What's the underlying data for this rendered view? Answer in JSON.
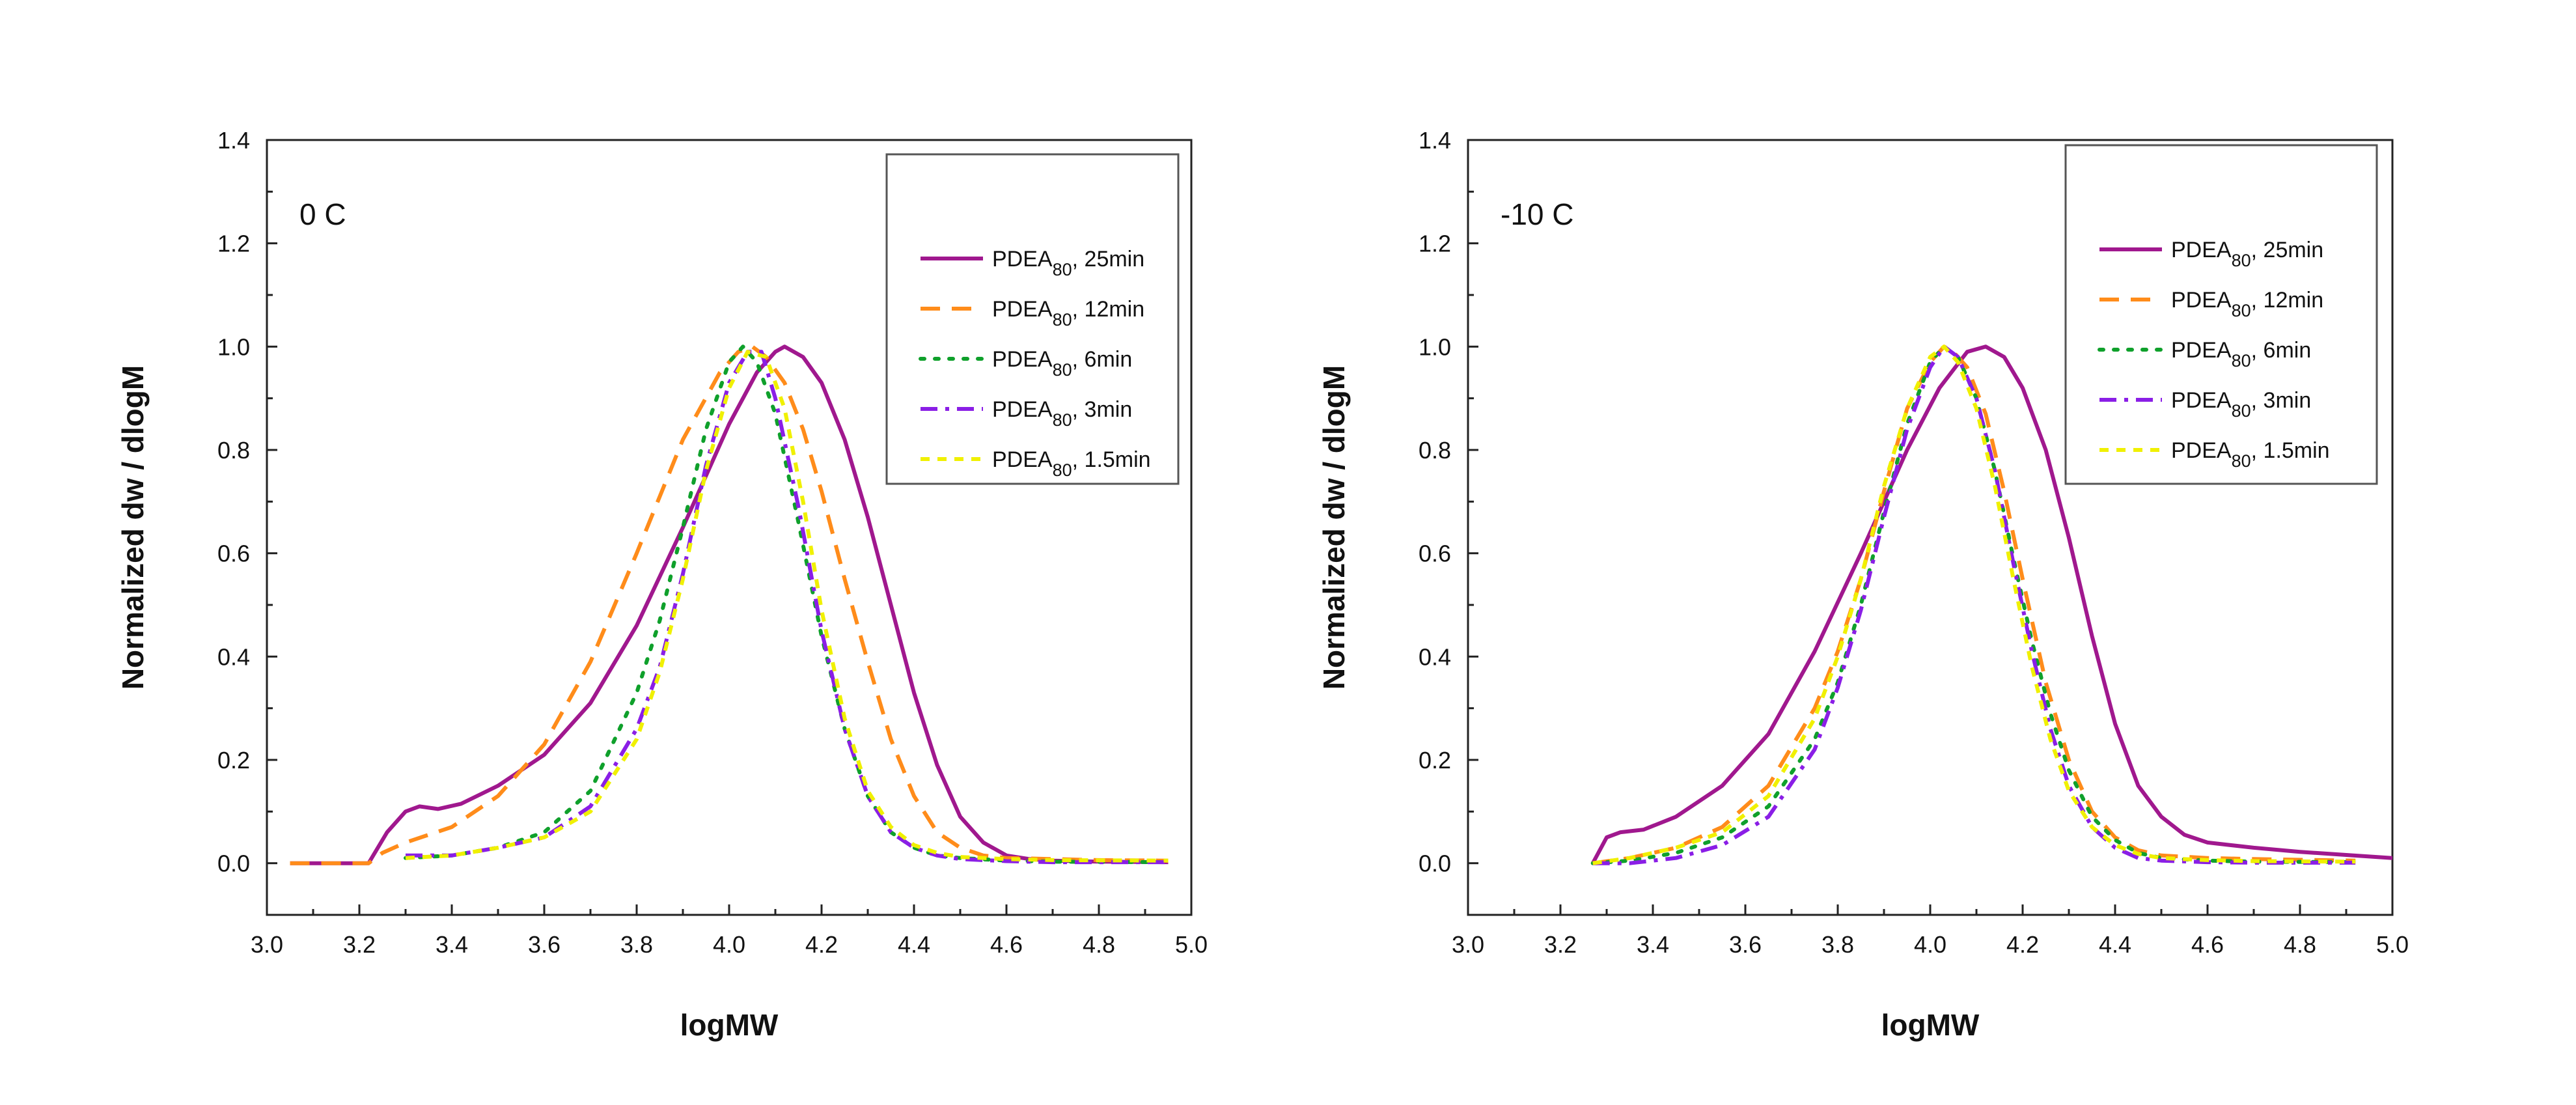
{
  "colors": {
    "PDEA80, 25min": "#a0188e",
    "PDEA80, 12min": "#ff8c1a",
    "PDEA80, 6min": "#0fa02b",
    "PDEA80, 3min": "#8a1ee6",
    "PDEA80, 1.5min": "#f0f000"
  },
  "chart_data": [
    {
      "type": "line",
      "title": "",
      "panel_label": "0 C",
      "xlabel": "logMW",
      "ylabel": "Normalized dw / dlogM",
      "xlim": [
        3.0,
        5.0
      ],
      "ylim": [
        -0.1,
        1.4
      ],
      "x_ticks": [
        "3.0",
        "3.2",
        "3.4",
        "3.6",
        "3.8",
        "4.0",
        "4.2",
        "4.4",
        "4.6",
        "4.8",
        "5.0"
      ],
      "y_ticks": [
        "0.0",
        "0.2",
        "0.4",
        "0.6",
        "0.8",
        "1.0",
        "1.2",
        "1.4"
      ],
      "grid": false,
      "legend_position": "top-right",
      "series": [
        {
          "name": "PDEA80, 25min",
          "legend_main": "PDEA",
          "legend_sub": "80",
          "legend_tail": ", 25min",
          "style": "solid",
          "x": [
            3.05,
            3.22,
            3.26,
            3.3,
            3.33,
            3.37,
            3.42,
            3.5,
            3.6,
            3.7,
            3.8,
            3.9,
            4.0,
            4.06,
            4.1,
            4.12,
            4.16,
            4.2,
            4.25,
            4.3,
            4.35,
            4.4,
            4.45,
            4.5,
            4.55,
            4.6,
            4.65,
            4.7,
            4.8,
            4.95
          ],
          "y": [
            0.0,
            0.0,
            0.06,
            0.1,
            0.11,
            0.105,
            0.115,
            0.15,
            0.21,
            0.31,
            0.46,
            0.65,
            0.85,
            0.95,
            0.99,
            1.0,
            0.98,
            0.93,
            0.82,
            0.67,
            0.5,
            0.33,
            0.19,
            0.09,
            0.04,
            0.015,
            0.008,
            0.005,
            0.003,
            0.002
          ]
        },
        {
          "name": "PDEA80, 12min",
          "legend_main": "PDEA",
          "legend_sub": "80",
          "legend_tail": ", 12min",
          "style": "dashed",
          "x": [
            3.05,
            3.22,
            3.25,
            3.3,
            3.4,
            3.5,
            3.6,
            3.7,
            3.8,
            3.9,
            3.98,
            4.02,
            4.05,
            4.08,
            4.12,
            4.16,
            4.2,
            4.25,
            4.3,
            4.35,
            4.4,
            4.45,
            4.5,
            4.55,
            4.6,
            4.7,
            4.8,
            4.95
          ],
          "y": [
            0.0,
            0.0,
            0.02,
            0.04,
            0.07,
            0.13,
            0.23,
            0.39,
            0.6,
            0.82,
            0.95,
            0.99,
            1.0,
            0.98,
            0.93,
            0.84,
            0.72,
            0.55,
            0.39,
            0.24,
            0.13,
            0.06,
            0.03,
            0.015,
            0.01,
            0.008,
            0.006,
            0.005
          ]
        },
        {
          "name": "PDEA80, 6min",
          "legend_main": "PDEA",
          "legend_sub": "80",
          "legend_tail": ", 6min",
          "style": "dotted",
          "x": [
            3.3,
            3.4,
            3.5,
            3.6,
            3.7,
            3.8,
            3.85,
            3.9,
            3.95,
            4.0,
            4.03,
            4.06,
            4.1,
            4.15,
            4.2,
            4.25,
            4.3,
            4.35,
            4.4,
            4.45,
            4.5,
            4.6,
            4.7,
            4.95
          ],
          "y": [
            0.01,
            0.015,
            0.03,
            0.06,
            0.14,
            0.33,
            0.47,
            0.65,
            0.84,
            0.97,
            1.0,
            0.97,
            0.87,
            0.66,
            0.44,
            0.26,
            0.13,
            0.06,
            0.03,
            0.015,
            0.01,
            0.005,
            0.003,
            0.002
          ]
        },
        {
          "name": "PDEA80, 3min",
          "legend_main": "PDEA",
          "legend_sub": "80",
          "legend_tail": ", 3min",
          "style": "dashdot",
          "x": [
            3.3,
            3.4,
            3.5,
            3.6,
            3.7,
            3.8,
            3.85,
            3.9,
            3.95,
            4.0,
            4.04,
            4.07,
            4.1,
            4.15,
            4.2,
            4.25,
            4.3,
            4.35,
            4.4,
            4.45,
            4.5,
            4.6,
            4.7,
            4.95
          ],
          "y": [
            0.015,
            0.015,
            0.03,
            0.05,
            0.11,
            0.26,
            0.38,
            0.56,
            0.77,
            0.93,
            0.99,
            0.99,
            0.9,
            0.69,
            0.45,
            0.26,
            0.13,
            0.06,
            0.03,
            0.015,
            0.008,
            0.004,
            0.002,
            0.002
          ]
        },
        {
          "name": "PDEA80, 1.5min",
          "legend_main": "PDEA",
          "legend_sub": "80",
          "legend_tail": ", 1.5min",
          "style": "shortdash",
          "x": [
            3.3,
            3.4,
            3.5,
            3.6,
            3.7,
            3.8,
            3.85,
            3.9,
            3.95,
            4.0,
            4.04,
            4.08,
            4.12,
            4.16,
            4.2,
            4.25,
            4.3,
            4.35,
            4.4,
            4.45,
            4.5,
            4.6,
            4.7,
            4.95
          ],
          "y": [
            0.01,
            0.015,
            0.03,
            0.05,
            0.1,
            0.24,
            0.37,
            0.55,
            0.76,
            0.92,
            0.99,
            0.98,
            0.88,
            0.7,
            0.49,
            0.28,
            0.14,
            0.07,
            0.035,
            0.02,
            0.012,
            0.008,
            0.006,
            0.005
          ]
        }
      ]
    },
    {
      "type": "line",
      "title": "",
      "panel_label": "-10 C",
      "xlabel": "logMW",
      "ylabel": "Normalized dw / dlogM",
      "xlim": [
        3.0,
        5.0
      ],
      "ylim": [
        -0.1,
        1.4
      ],
      "x_ticks": [
        "3.0",
        "3.2",
        "3.4",
        "3.6",
        "3.8",
        "4.0",
        "4.2",
        "4.4",
        "4.6",
        "4.8",
        "5.0"
      ],
      "y_ticks": [
        "0.0",
        "0.2",
        "0.4",
        "0.6",
        "0.8",
        "1.0",
        "1.2",
        "1.4"
      ],
      "grid": false,
      "legend_position": "top-right",
      "series": [
        {
          "name": "PDEA80, 25min",
          "legend_main": "PDEA",
          "legend_sub": "80",
          "legend_tail": ", 25min",
          "style": "solid",
          "x": [
            3.27,
            3.3,
            3.33,
            3.38,
            3.45,
            3.55,
            3.65,
            3.75,
            3.85,
            3.95,
            4.02,
            4.08,
            4.12,
            4.16,
            4.2,
            4.25,
            4.3,
            4.35,
            4.4,
            4.45,
            4.5,
            4.55,
            4.6,
            4.7,
            4.8,
            4.9,
            5.0
          ],
          "y": [
            0.0,
            0.05,
            0.06,
            0.065,
            0.09,
            0.15,
            0.25,
            0.41,
            0.6,
            0.8,
            0.92,
            0.99,
            1.0,
            0.98,
            0.92,
            0.8,
            0.63,
            0.44,
            0.27,
            0.15,
            0.09,
            0.055,
            0.04,
            0.03,
            0.022,
            0.016,
            0.01
          ]
        },
        {
          "name": "PDEA80, 12min",
          "legend_main": "PDEA",
          "legend_sub": "80",
          "legend_tail": ", 12min",
          "style": "dashed",
          "x": [
            3.27,
            3.35,
            3.45,
            3.55,
            3.65,
            3.75,
            3.8,
            3.85,
            3.9,
            3.95,
            4.0,
            4.03,
            4.05,
            4.08,
            4.12,
            4.16,
            4.2,
            4.25,
            4.3,
            4.35,
            4.4,
            4.45,
            4.5,
            4.6,
            4.7,
            4.92
          ],
          "y": [
            0.0,
            0.01,
            0.03,
            0.07,
            0.15,
            0.3,
            0.41,
            0.55,
            0.72,
            0.88,
            0.97,
            1.0,
            0.99,
            0.96,
            0.87,
            0.72,
            0.55,
            0.35,
            0.2,
            0.1,
            0.05,
            0.025,
            0.015,
            0.01,
            0.008,
            0.005
          ]
        },
        {
          "name": "PDEA80, 6min",
          "legend_main": "PDEA",
          "legend_sub": "80",
          "legend_tail": ", 6min",
          "style": "dotted",
          "x": [
            3.27,
            3.35,
            3.45,
            3.55,
            3.65,
            3.75,
            3.8,
            3.85,
            3.9,
            3.95,
            4.0,
            4.03,
            4.06,
            4.1,
            4.14,
            4.18,
            4.22,
            4.26,
            4.3,
            4.35,
            4.4,
            4.45,
            4.5,
            4.6,
            4.7,
            4.92
          ],
          "y": [
            0.0,
            0.005,
            0.02,
            0.05,
            0.11,
            0.24,
            0.35,
            0.5,
            0.68,
            0.85,
            0.97,
            1.0,
            0.98,
            0.9,
            0.76,
            0.59,
            0.43,
            0.29,
            0.18,
            0.09,
            0.045,
            0.02,
            0.01,
            0.005,
            0.003,
            0.002
          ]
        },
        {
          "name": "PDEA80, 3min",
          "legend_main": "PDEA",
          "legend_sub": "80",
          "legend_tail": ", 3min",
          "style": "dashdot",
          "x": [
            3.27,
            3.35,
            3.45,
            3.55,
            3.65,
            3.75,
            3.8,
            3.85,
            3.9,
            3.95,
            4.0,
            4.03,
            4.06,
            4.1,
            4.14,
            4.18,
            4.22,
            4.26,
            4.3,
            4.35,
            4.4,
            4.45,
            4.5,
            4.6,
            4.7,
            4.92
          ],
          "y": [
            0.0,
            0.0,
            0.01,
            0.035,
            0.09,
            0.22,
            0.34,
            0.49,
            0.67,
            0.84,
            0.96,
            1.0,
            0.98,
            0.9,
            0.76,
            0.58,
            0.41,
            0.26,
            0.15,
            0.07,
            0.03,
            0.01,
            0.005,
            0.002,
            0.001,
            0.001
          ]
        },
        {
          "name": "PDEA80, 1.5min",
          "legend_main": "PDEA",
          "legend_sub": "80",
          "legend_tail": ", 1.5min",
          "style": "shortdash",
          "x": [
            3.27,
            3.35,
            3.45,
            3.55,
            3.65,
            3.75,
            3.8,
            3.85,
            3.9,
            3.95,
            4.0,
            4.03,
            4.06,
            4.1,
            4.14,
            4.18,
            4.22,
            4.26,
            4.3,
            4.35,
            4.4,
            4.45,
            4.5,
            4.6,
            4.7,
            4.92
          ],
          "y": [
            0.0,
            0.01,
            0.03,
            0.06,
            0.13,
            0.28,
            0.4,
            0.55,
            0.73,
            0.88,
            0.98,
            1.0,
            0.97,
            0.88,
            0.73,
            0.55,
            0.38,
            0.24,
            0.14,
            0.07,
            0.035,
            0.018,
            0.01,
            0.006,
            0.004,
            0.003
          ]
        }
      ]
    }
  ]
}
